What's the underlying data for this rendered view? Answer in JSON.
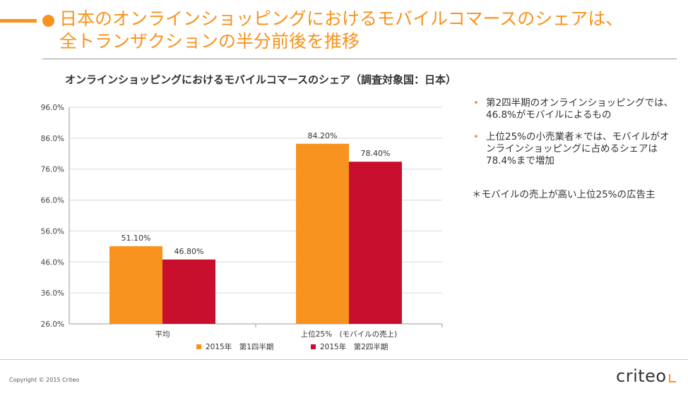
{
  "slide": {
    "title_line1": "日本のオンラインショッピングにおけるモバイルコマースのシェアは、",
    "title_line2": "全トランザクションの半分前後を推移",
    "accent_color": "#F7931E"
  },
  "chart_data": {
    "type": "bar",
    "title": "オンラインショッピングにおけるモバイルコマースのシェア（調査対象国：日本）",
    "categories": [
      "平均",
      "上位25%　(モバイルの売上)"
    ],
    "series": [
      {
        "name": "2015年　第1四半期",
        "values": [
          51.1,
          84.2
        ],
        "labels": [
          "51.10%",
          "84.20%"
        ],
        "color": "#F7931E"
      },
      {
        "name": "2015年　第2四半期",
        "values": [
          46.8,
          78.4
        ],
        "labels": [
          "46.80%",
          "78.40%"
        ],
        "color": "#C8102E"
      }
    ],
    "ylim": [
      26,
      96
    ],
    "yticks": [
      "26.0%",
      "36.0%",
      "46.0%",
      "56.0%",
      "66.0%",
      "76.0%",
      "86.0%",
      "96.0%"
    ],
    "grid": true,
    "legend": "bottom"
  },
  "bullets": [
    "第2四半期のオンラインショッピングでは、46.8%がモバイルによるもの",
    "上位25%の小売業者＊では、モバイルがオンラインショッピングに占めるシェアは78.4%まで増加"
  ],
  "note": "＊モバイルの売上が高い上位25%の広告主",
  "footer": {
    "copyright": "Copyright © 2015 Criteo",
    "logo": "criteo"
  }
}
